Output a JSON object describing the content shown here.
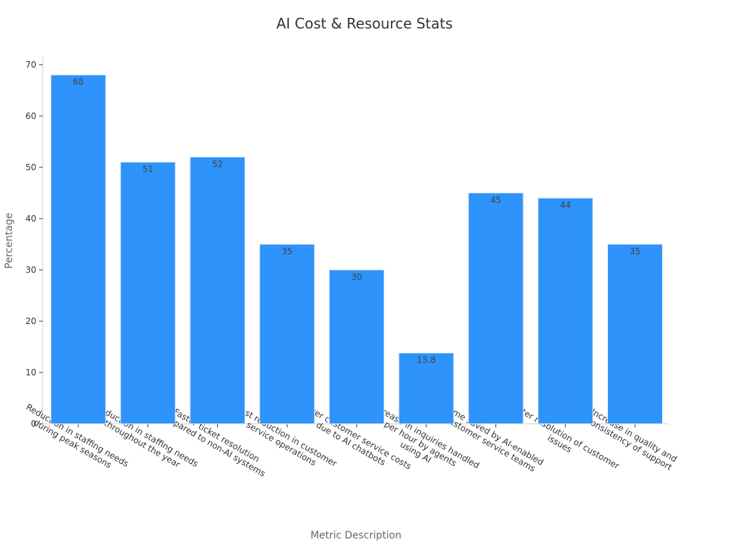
{
  "chart_data": {
    "type": "bar",
    "title": "AI Cost & Resource Stats",
    "xlabel": "Metric Description",
    "ylabel": "Percentage",
    "categories": [
      [
        "Reduction in staffing needs",
        "during peak seasons"
      ],
      [
        "Reduction in staffing needs",
        "throughout the year"
      ],
      [
        "Faster ticket resolution",
        "compared to non-AI systems"
      ],
      [
        "Cost reduction in customer",
        "service operations"
      ],
      [
        "Lower customer service costs",
        "due to AI chatbots"
      ],
      [
        "Increase in inquiries handled",
        "per hour by agents",
        "using AI"
      ],
      [
        "Time saved by AI-enabled",
        "customer service teams"
      ],
      [
        "Faster resolution of customer",
        "issues"
      ],
      [
        "Increase in quality and",
        "consistency of support"
      ]
    ],
    "values": [
      68,
      51,
      52,
      35,
      30,
      13.8,
      45,
      44,
      35
    ],
    "value_labels": [
      "68",
      "51",
      "52",
      "35",
      "30",
      "13.8",
      "45",
      "44",
      "35"
    ],
    "yticks": [
      0,
      10,
      20,
      30,
      40,
      50,
      60,
      70
    ],
    "ylim": [
      0,
      71.5
    ],
    "grid": false,
    "bar_color": "#2e93fa",
    "bar_border_color": "#e0eaf5"
  }
}
